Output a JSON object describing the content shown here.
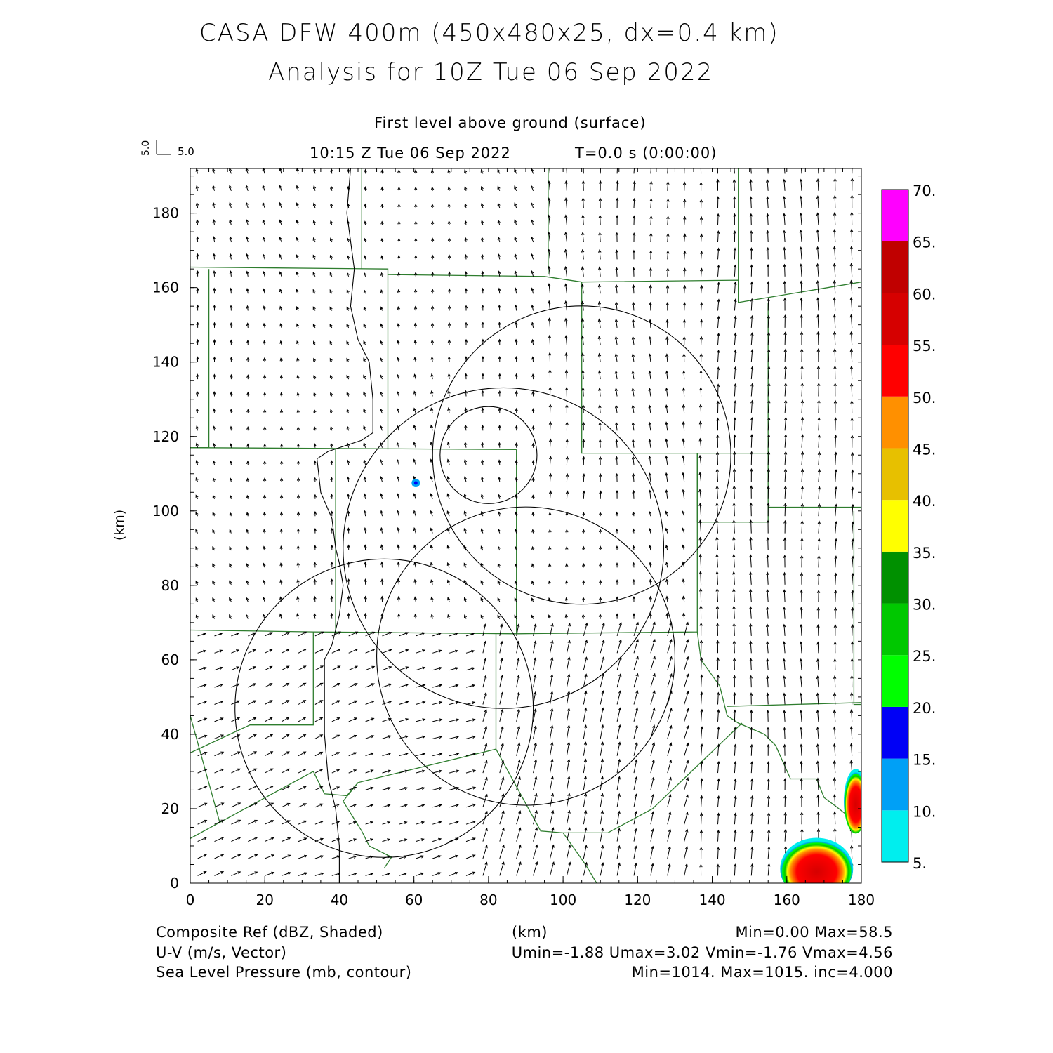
{
  "title_line1": "CASA DFW 400m (450x480x25, dx=0.4 km)",
  "title_line2": "Analysis for 10Z Tue 06 Sep 2022",
  "level_label": "First level above ground (surface)",
  "time_label": "10:15 Z Tue 06 Sep 2022",
  "elapsed_label": "T=0.0 s (0:00:00)",
  "vector_ref": {
    "u_label": "5.0",
    "v_label": "5.0"
  },
  "footer": {
    "line1_left": "Composite Ref (dBZ, Shaded)",
    "line1_center": "(km)",
    "line1_right": "Min=0.00 Max=58.5",
    "line2_left": "U-V (m/s, Vector)",
    "line2_right": "Umin=-1.88 Umax=3.02 Vmin=-1.76 Vmax=4.56",
    "line3_left": "Sea Level Pressure (mb, contour)",
    "line3_right": "Min=1014. Max=1015. inc=4.000"
  },
  "chart_data": {
    "type": "heatmap",
    "xlabel": "",
    "ylabel": "(km)",
    "xlim": [
      0,
      180
    ],
    "ylim": [
      0,
      192
    ],
    "xticks": [
      "0",
      "20",
      "40",
      "60",
      "80",
      "100",
      "120",
      "140",
      "160",
      "180"
    ],
    "yticks": [
      "0",
      "20",
      "40",
      "60",
      "80",
      "100",
      "120",
      "140",
      "160",
      "180"
    ],
    "colorbar": {
      "labels": [
        "5.",
        "10.",
        "15.",
        "20.",
        "25.",
        "30.",
        "35.",
        "40.",
        "45.",
        "50.",
        "55.",
        "60.",
        "65.",
        "70."
      ],
      "colors": [
        "#00eeee",
        "#00a0f6",
        "#0000f6",
        "#00ff00",
        "#00c800",
        "#009000",
        "#ffff00",
        "#e7c000",
        "#ff9000",
        "#ff0000",
        "#d60000",
        "#c00000",
        "#ff00ff"
      ]
    },
    "reflectivity_cells": [
      {
        "x": 168,
        "y": 5,
        "peak_dbz": 58.5
      },
      {
        "x": 178.5,
        "y": 22,
        "peak_dbz": 55
      },
      {
        "x": 60.5,
        "y": 107.5,
        "peak_dbz": 15
      }
    ],
    "pressure_contours": [
      {
        "cx": 105,
        "cy": 115,
        "r": 40
      },
      {
        "cx": 84,
        "cy": 90,
        "r": 43
      },
      {
        "cx": 80,
        "cy": 115,
        "r": 13
      },
      {
        "cx": 90,
        "cy": 61,
        "r": 40
      },
      {
        "cx": 52,
        "cy": 47,
        "r": 40
      }
    ],
    "wind_field": {
      "regions": [
        {
          "zone": "north",
          "u": -0.3,
          "v": 1.4
        },
        {
          "zone": "northeast",
          "u": -0.1,
          "v": 2.8
        },
        {
          "zone": "east",
          "u": 0.0,
          "v": 3.8
        },
        {
          "zone": "southwest",
          "u": 2.6,
          "v": 1.0
        },
        {
          "zone": "south",
          "u": 1.0,
          "v": 4.0
        }
      ]
    }
  }
}
